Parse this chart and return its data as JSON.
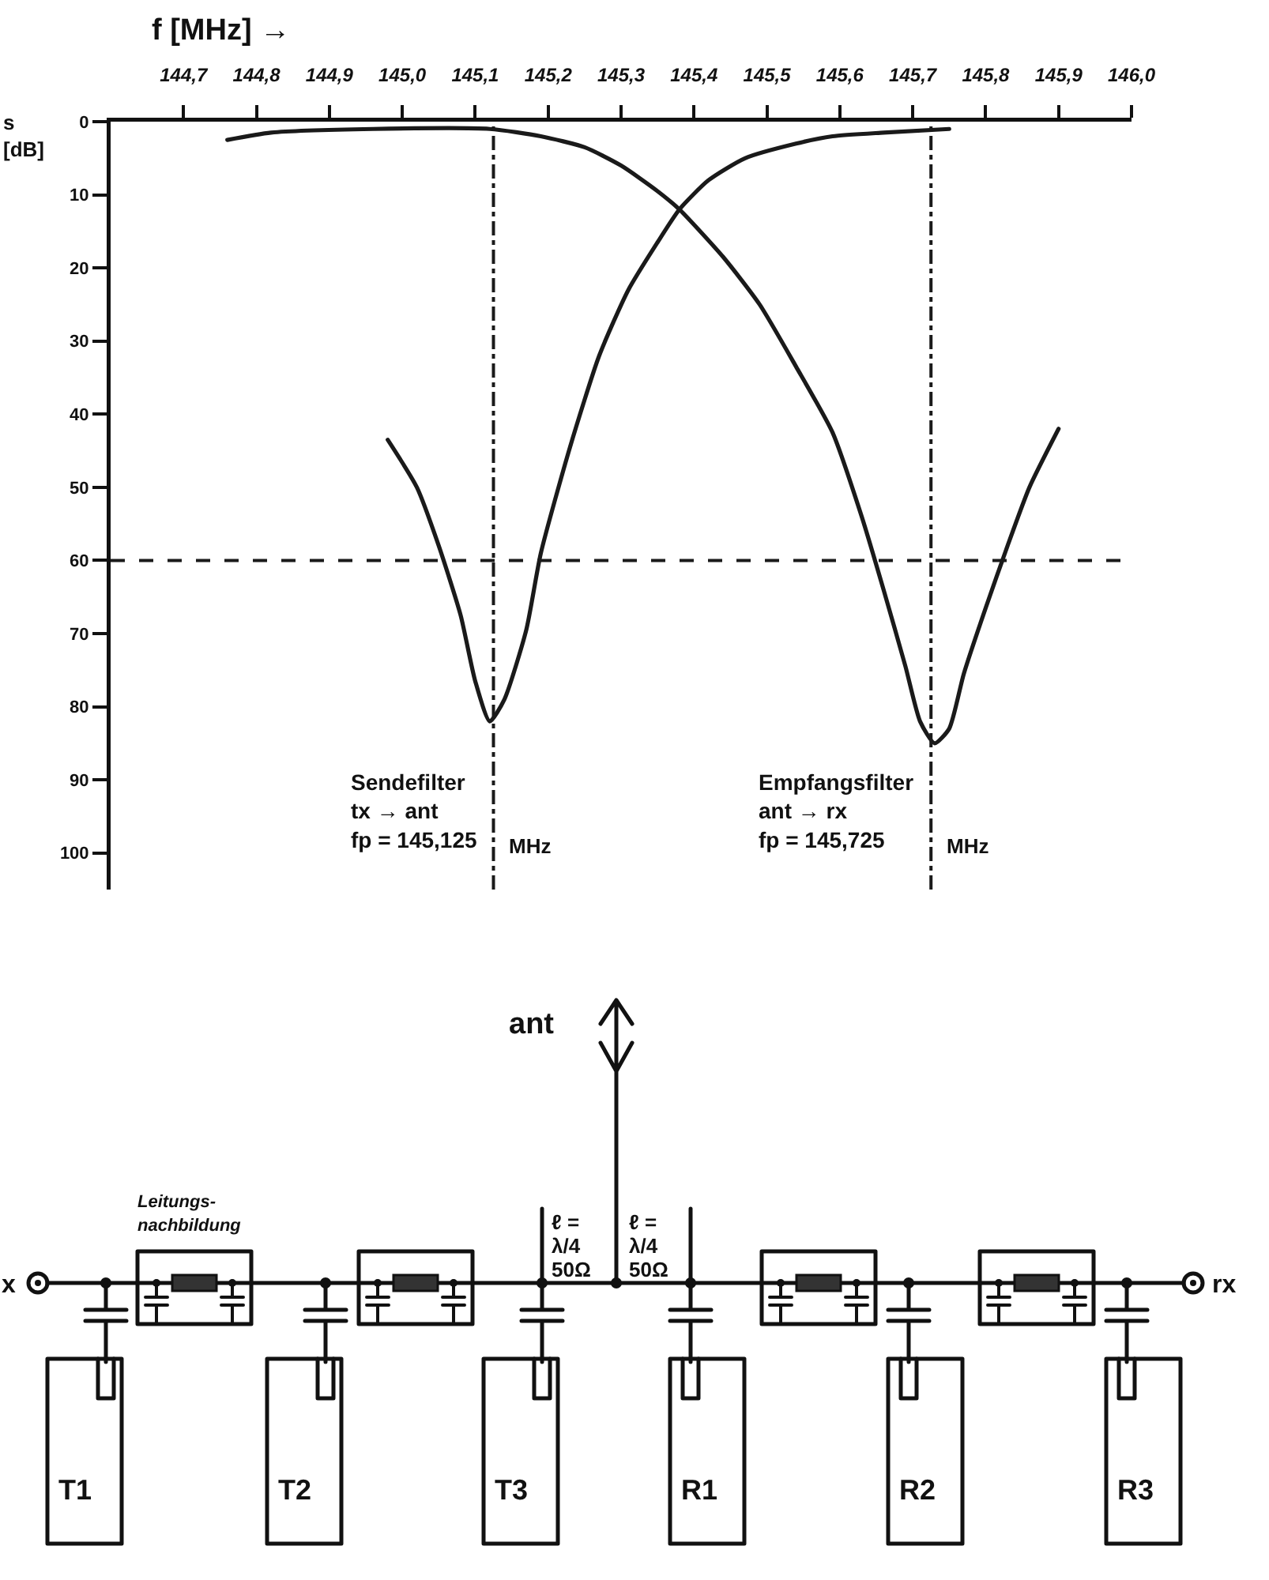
{
  "chart_data": [
    {
      "type": "line",
      "xlabel": "f [MHz] →",
      "ylabel": "s\n[dB]",
      "series": [
        {
          "color": "#1a1a1a",
          "x": [
            144.76,
            144.82,
            144.96,
            145.12,
            145.19,
            145.25,
            145.3,
            145.35,
            145.38,
            145.44,
            145.49,
            145.54,
            145.59,
            145.63,
            145.66,
            145.69,
            145.71,
            145.73,
            145.75,
            145.77,
            145.8,
            145.83,
            145.86,
            145.9
          ],
          "values": [
            2.5,
            1.5,
            1,
            1,
            2,
            3.5,
            6,
            9.5,
            12,
            18.5,
            25,
            33.5,
            42.5,
            54,
            64,
            74.5,
            82,
            85,
            83,
            75.5,
            66.5,
            58,
            50,
            42
          ]
        },
        {
          "color": "#1a1a1a",
          "x": [
            144.98,
            145.02,
            145.05,
            145.08,
            145.1,
            145.12,
            145.14,
            145.17,
            145.19,
            145.23,
            145.27,
            145.31,
            145.35,
            145.38,
            145.42,
            145.47,
            145.54,
            145.59,
            145.66,
            145.75
          ],
          "values": [
            43.5,
            50,
            58,
            67.5,
            76.5,
            82,
            79,
            69.5,
            59,
            44.5,
            32,
            23,
            16.5,
            12,
            8,
            5,
            3,
            2,
            1.5,
            1
          ]
        }
      ],
      "xlim": [
        144.6,
        146.0
      ],
      "xticks": [
        {
          "value": 144.7,
          "label": "144,7"
        },
        {
          "value": 144.8,
          "label": "144,8"
        },
        {
          "value": 144.9,
          "label": "144,9"
        },
        {
          "value": 145.0,
          "label": "145,0"
        },
        {
          "value": 145.1,
          "label": "145,1"
        },
        {
          "value": 145.2,
          "label": "145,2"
        },
        {
          "value": 145.3,
          "label": "145,3"
        },
        {
          "value": 145.4,
          "label": "145,4"
        },
        {
          "value": 145.5,
          "label": "145,5"
        },
        {
          "value": 145.6,
          "label": "145,6"
        },
        {
          "value": 145.7,
          "label": "145,7"
        },
        {
          "value": 145.8,
          "label": "145,8"
        },
        {
          "value": 145.9,
          "label": "145,9"
        },
        {
          "value": 146.0,
          "label": "146,0"
        }
      ],
      "ylim": [
        105,
        0
      ],
      "yticks": [
        0,
        10,
        20,
        30,
        40,
        50,
        60,
        70,
        80,
        90,
        100
      ],
      "ref_lines": [
        {
          "axis": "x",
          "value": 145.125,
          "label": "Sendefilter\ntx → ant\nfp = 145,125",
          "line_style": "dashdot",
          "color": "#1a1a1a"
        },
        {
          "axis": "x",
          "value": 145.725,
          "label": "Empfangsfilter\nant → rx\nfp = 145,725",
          "line_style": "dashdot",
          "color": "#1a1a1a"
        },
        {
          "axis": "y",
          "value": 60,
          "line_style": "dashed",
          "color": "#1a1a1a"
        }
      ],
      "annotations": [
        {
          "text": "MHz",
          "x": 145.125,
          "y": 99
        },
        {
          "text": "MHz",
          "x": 145.725,
          "y": 99
        }
      ]
    },
    {
      "type": "other",
      "annotations": [
        "ant",
        "Leitungs-\nnachbildung",
        "ℓ =\nλ/4\n50Ω",
        "ℓ =\nλ/4\n50Ω",
        "x",
        "rx",
        "T1",
        "T2",
        "T3",
        "R1",
        "R2",
        "R3"
      ]
    }
  ]
}
